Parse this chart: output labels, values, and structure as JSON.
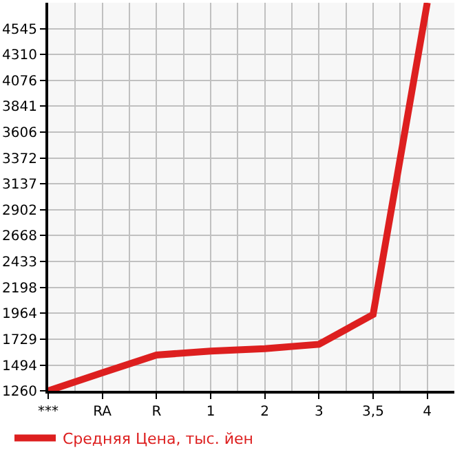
{
  "chart_data": {
    "type": "line",
    "categories": [
      "***",
      "RA",
      "R",
      "1",
      "2",
      "3",
      "3,5",
      "4"
    ],
    "series": [
      {
        "name": "Средняя Цена, тыс. йен",
        "color": "#dd1f1f",
        "values": [
          1260,
          1424,
          1585,
          1620,
          1643,
          1682,
          1952,
          4780
        ]
      }
    ],
    "ylim": [
      1260,
      4780
    ],
    "yticks": [
      1260,
      1494,
      1729,
      1964,
      2198,
      2433,
      2668,
      2902,
      3137,
      3372,
      3606,
      3841,
      4076,
      4310,
      4545
    ],
    "grid": true,
    "legend": "bottom",
    "marker": "none",
    "line_style": "solid"
  }
}
